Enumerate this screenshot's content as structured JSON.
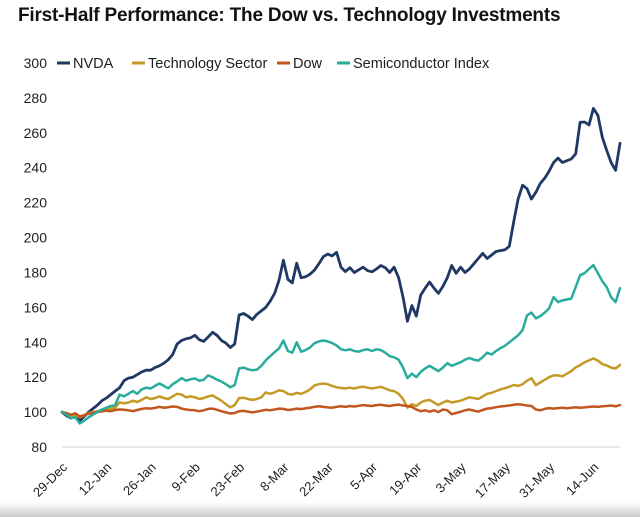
{
  "title": "First-Half Performance: The Dow vs. Technology Investments",
  "chart_data": {
    "type": "line",
    "title": "First-Half Performance: The Dow vs. Technology Investments",
    "xlabel": "",
    "ylabel": "",
    "ylim": [
      80,
      300
    ],
    "y_tick_step": 20,
    "y_axis": {
      "ticks": [
        300,
        280,
        260,
        240,
        220,
        200,
        180,
        160,
        140,
        120,
        100,
        80
      ]
    },
    "x_axis": {
      "labels": [
        "29-Dec",
        "12-Jan",
        "26-Jan",
        "9-Feb",
        "23-Feb",
        "8-Mar",
        "22-Mar",
        "5-Apr",
        "19-Apr",
        "3-May",
        "17-May",
        "31-May",
        "14-Jun"
      ],
      "points_per_tick": 10
    },
    "grid": "single light gridline at y=80 only",
    "legend_position": "top",
    "baseline_value": 100,
    "series": [
      {
        "name": "NVDA",
        "color": "#1F3864",
        "values": [
          100,
          98,
          96.5,
          98.5,
          95,
          97.5,
          100,
          102,
          104,
          106.5,
          108,
          110,
          112,
          114,
          118,
          119.5,
          120,
          121.5,
          123,
          124,
          124,
          125.5,
          126.5,
          128,
          130,
          133,
          139,
          141,
          142,
          142.5,
          144,
          141.5,
          140.5,
          143,
          145.7,
          144,
          141,
          139.5,
          137,
          139,
          155.6,
          156.5,
          155,
          153,
          156,
          158,
          160,
          163.5,
          168,
          175.5,
          187,
          176,
          174,
          185.3,
          177,
          177.5,
          179,
          181.3,
          185,
          189,
          190.5,
          189.5,
          191.5,
          183,
          180.5,
          182.7,
          180,
          181.5,
          183,
          181,
          180.4,
          182,
          184,
          182.7,
          180,
          183,
          177,
          166,
          152,
          161,
          155,
          167,
          171,
          174.5,
          171,
          168,
          172,
          177,
          184,
          179.5,
          183,
          180,
          182,
          185,
          188,
          191,
          188,
          190,
          192,
          192.5,
          193,
          195,
          209,
          222,
          230,
          228,
          222,
          226,
          231,
          234,
          238,
          243,
          245.5,
          243,
          244,
          245,
          248,
          266,
          266.2,
          264.5,
          274,
          270,
          257.5,
          250,
          243,
          238.5,
          254
        ]
      },
      {
        "name": "Technology Sector",
        "color": "#C49A27",
        "values": [
          100,
          99,
          97.5,
          98.5,
          97,
          98,
          99.5,
          100,
          100.5,
          101,
          101.5,
          102,
          102.5,
          105.6,
          105,
          105.5,
          106.5,
          105.8,
          107,
          108.5,
          107.5,
          108,
          109,
          108,
          107.5,
          109,
          110.5,
          110,
          108.5,
          109,
          108.5,
          107.5,
          108,
          109,
          109.5,
          108,
          106.5,
          104.5,
          102.7,
          104,
          108,
          108.2,
          107.5,
          107,
          107.5,
          108.5,
          111.3,
          110.5,
          111.3,
          112.5,
          112,
          110.5,
          110,
          111,
          110.5,
          111.5,
          113,
          115.3,
          116,
          116.4,
          116,
          115,
          114.2,
          113.8,
          113.6,
          114,
          113.5,
          114.2,
          114.5,
          114,
          113.5,
          114,
          114.5,
          113.5,
          112.5,
          112,
          110.5,
          107.5,
          102.5,
          104.5,
          103.5,
          105.5,
          106.5,
          107,
          105.5,
          104,
          105.5,
          106.5,
          105.5,
          106,
          106.5,
          107.5,
          108.5,
          108,
          107.5,
          109,
          110.5,
          111,
          112,
          113,
          113.7,
          114.5,
          115.5,
          115,
          116,
          118,
          119.4,
          115.4,
          117,
          118.5,
          120,
          121,
          121,
          120.5,
          122,
          123.5,
          125.6,
          126.9,
          128.5,
          129.6,
          130.7,
          129.5,
          127.5,
          126.7,
          125.5,
          125,
          127
        ]
      },
      {
        "name": "Dow",
        "color": "#C2561F",
        "values": [
          100,
          99.5,
          98.5,
          99.3,
          97.5,
          98.2,
          99,
          99.5,
          100,
          100.4,
          100.8,
          100.5,
          101.2,
          101.5,
          101.3,
          101,
          100.5,
          101.2,
          101.8,
          102.2,
          102,
          102.4,
          103,
          102.5,
          102.8,
          103.2,
          103,
          102,
          101.5,
          101.2,
          101,
          100.5,
          101,
          101.8,
          102,
          101.3,
          100.5,
          99.8,
          99.2,
          99.5,
          100.5,
          100.7,
          100.2,
          99.8,
          100.3,
          100.8,
          101.3,
          101,
          101.5,
          102,
          101.8,
          101.2,
          101.5,
          102,
          101.7,
          102.2,
          102.5,
          103,
          103.3,
          103,
          102.7,
          102.5,
          103,
          103.3,
          103,
          103.5,
          103.2,
          103.6,
          104,
          103.7,
          103.5,
          104,
          104.2,
          103.8,
          103.5,
          104,
          104.3,
          103.8,
          103.5,
          103,
          101.5,
          100.5,
          101,
          100.2,
          101,
          100,
          101.5,
          101,
          98.8,
          99.5,
          100.2,
          101,
          101.5,
          100.8,
          100.3,
          101.2,
          102,
          102.3,
          102.8,
          103.2,
          103.5,
          103.8,
          104.2,
          104.5,
          104.2,
          103.8,
          103.5,
          101.5,
          101,
          101.8,
          102.3,
          102,
          102.3,
          102.5,
          102.2,
          102.5,
          102.8,
          102.5,
          102.7,
          103,
          103.2,
          103,
          103.3,
          103.5,
          103.8,
          103.3,
          104
        ]
      },
      {
        "name": "Semiconductor Index",
        "color": "#2AAC9C",
        "values": [
          100,
          98.5,
          96.5,
          97,
          93.5,
          95,
          97,
          98.5,
          100,
          101.5,
          102.5,
          103.5,
          104,
          110,
          109,
          110.5,
          112,
          110.5,
          113,
          114,
          113.5,
          115,
          116.4,
          115,
          113.6,
          116,
          117.5,
          119.5,
          118,
          118.8,
          119.3,
          118,
          118.5,
          121,
          120,
          118.5,
          117.5,
          116,
          114.2,
          115.5,
          125,
          125.5,
          124.5,
          124,
          124.3,
          126.5,
          129.6,
          132,
          134.3,
          136.5,
          141,
          135,
          134,
          140,
          134.6,
          135.5,
          137,
          139.4,
          140.5,
          141,
          140.5,
          139.5,
          138.2,
          136,
          135.4,
          136,
          135,
          134.6,
          135.5,
          136,
          135,
          136,
          135.5,
          134,
          132,
          131.4,
          130,
          125.6,
          119.5,
          122,
          120,
          123,
          125,
          126.5,
          125,
          123.5,
          125.5,
          128,
          126.5,
          127.5,
          128.5,
          130,
          131,
          130,
          129.5,
          131.5,
          134,
          133,
          135,
          136.6,
          138,
          140,
          142,
          144,
          147,
          155.4,
          157,
          153.7,
          155,
          157,
          159.4,
          165.8,
          163,
          164,
          164.5,
          165,
          171.6,
          178.4,
          179.6,
          182,
          184.2,
          179.6,
          175,
          171.6,
          165.8,
          163,
          171
        ]
      }
    ]
  },
  "colors": {
    "title": "#121212",
    "axis_text": "#1f1f1f",
    "gridline": "#d9d9d9",
    "background": "#ffffff"
  }
}
